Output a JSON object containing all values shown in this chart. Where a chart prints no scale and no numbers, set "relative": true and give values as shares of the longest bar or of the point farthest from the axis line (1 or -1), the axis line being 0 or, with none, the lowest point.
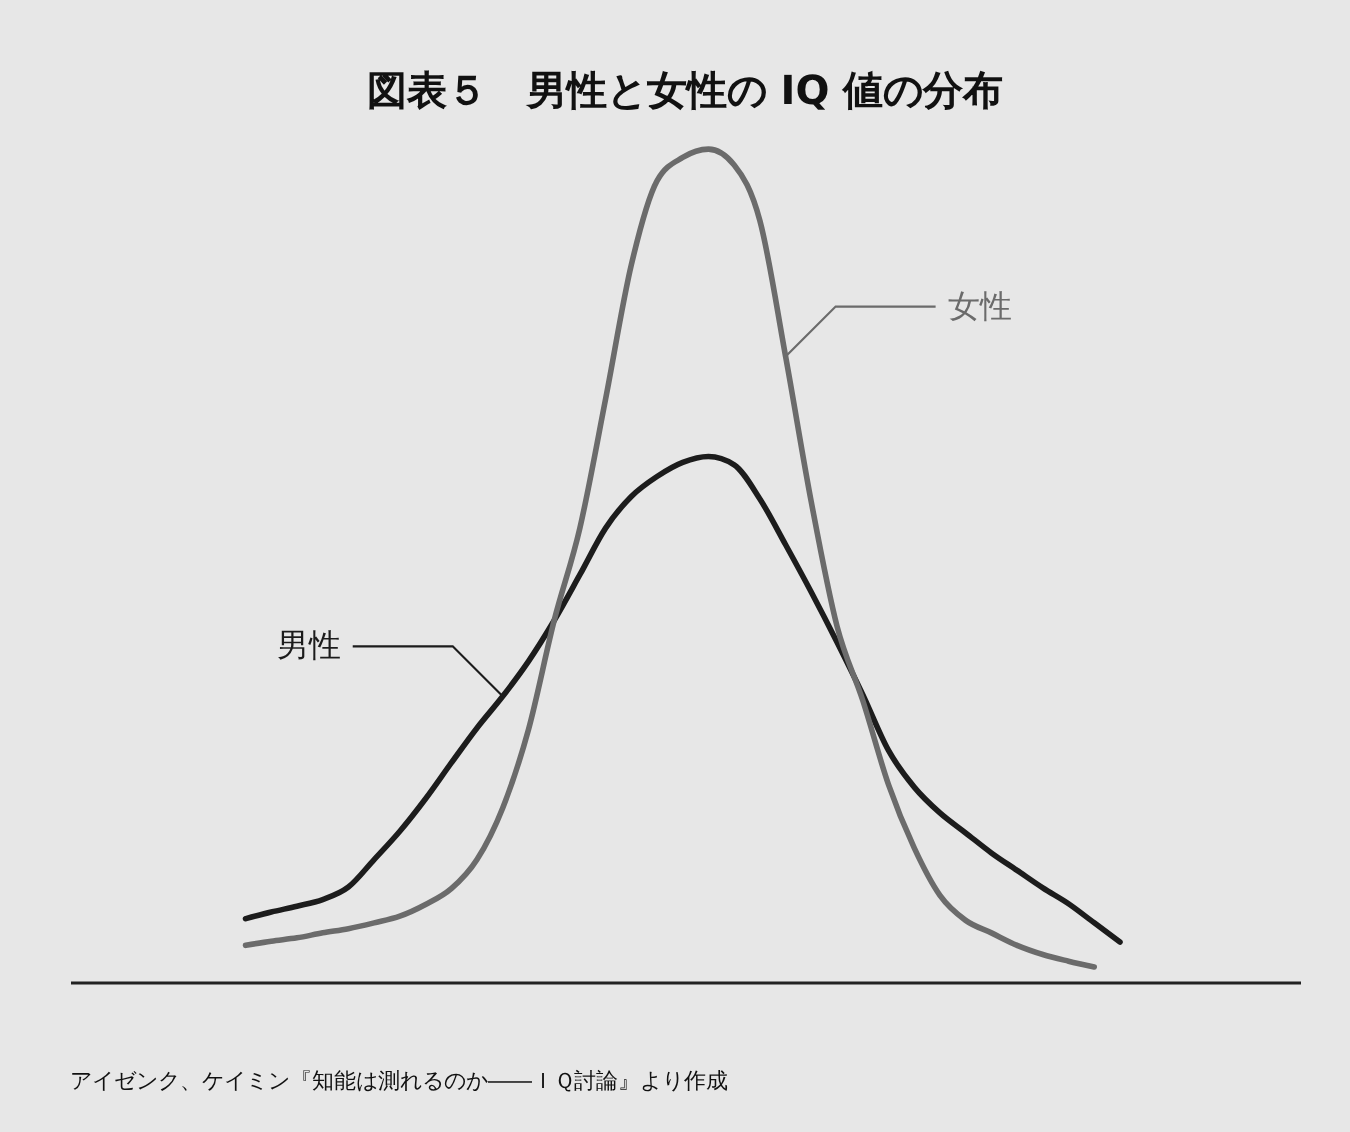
{
  "chart_data": {
    "type": "line",
    "title": "図表５　男性と女性の IQ 値の分布",
    "relative": true,
    "categories": [
      null,
      null,
      null,
      null,
      null,
      null,
      null,
      null,
      null,
      null,
      null,
      null,
      null,
      null,
      null,
      null,
      null,
      null,
      null,
      null,
      null,
      null,
      null,
      null,
      null,
      null,
      null,
      null,
      null,
      null,
      null,
      null,
      null,
      null,
      null
    ],
    "series": [
      {
        "name": "男性",
        "color": "#1c1c1c",
        "values": [
          0.076,
          0.084,
          0.091,
          0.099,
          0.114,
          0.147,
          0.181,
          0.22,
          0.263,
          0.305,
          0.343,
          0.385,
          0.434,
          0.489,
          0.545,
          0.583,
          0.607,
          0.624,
          0.631,
          0.621,
          0.58,
          0.525,
          0.468,
          0.408,
          0.345,
          0.278,
          0.234,
          0.203,
          0.179,
          0.155,
          0.134,
          0.113,
          0.094,
          0.071,
          0.048
        ]
      },
      {
        "name": "女性",
        "color": "#6b6b6b",
        "values": [
          0.044,
          0.049,
          0.053,
          0.059,
          0.064,
          0.071,
          0.079,
          0.093,
          0.112,
          0.147,
          0.209,
          0.303,
          0.434,
          0.545,
          0.7,
          0.861,
          0.962,
          0.99,
          1,
          0.981,
          0.914,
          0.751,
          0.576,
          0.427,
          0.338,
          0.237,
          0.161,
          0.104,
          0.074,
          0.059,
          0.044,
          0.033,
          0.025,
          0.018,
          null
        ]
      }
    ],
    "annotations": [
      "アイゼンク、ケイミン『知能は測れるのか――ＩＱ討論』より作成"
    ]
  }
}
